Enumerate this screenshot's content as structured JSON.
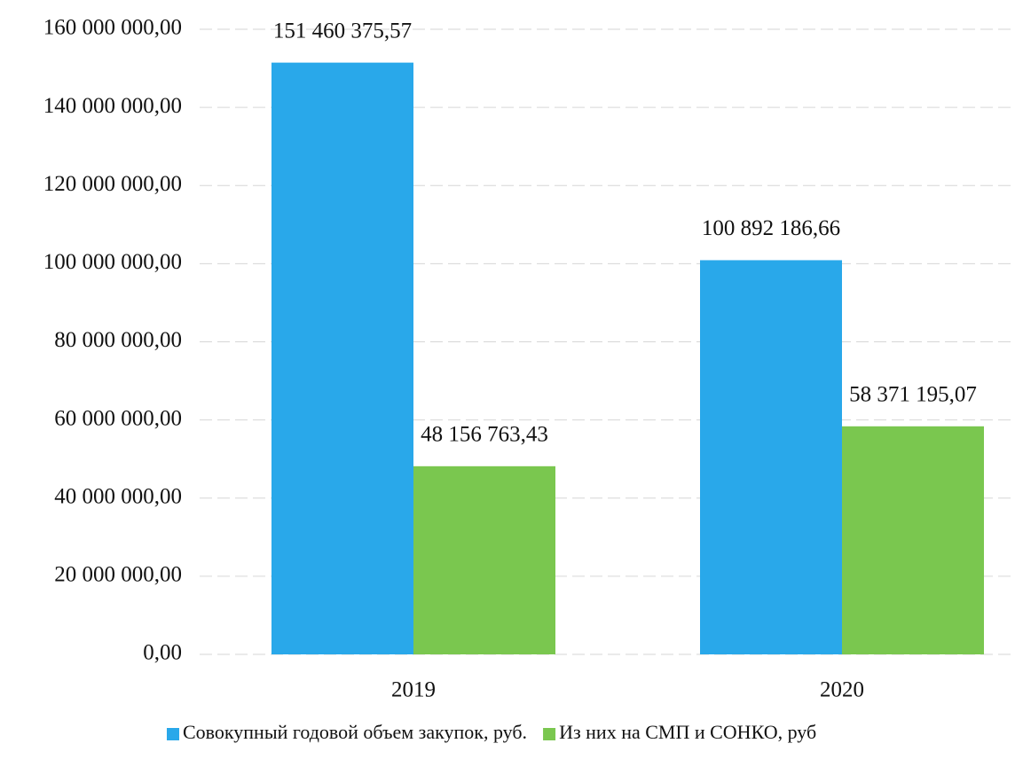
{
  "chart_data": {
    "type": "bar",
    "categories": [
      "2019",
      "2020"
    ],
    "series": [
      {
        "name": "Совокупный годовой объем закупок, руб.",
        "color": "#29a8ea",
        "values": [
          151460375.57,
          100892186.66
        ],
        "value_labels": [
          "151 460 375,57",
          "100 892 186,66"
        ]
      },
      {
        "name": "Из них на СМП и СОНКО, руб",
        "color": "#7ac74f",
        "values": [
          48156763.43,
          58371195.07
        ],
        "value_labels": [
          "48 156 763,43",
          "58 371 195,07"
        ]
      }
    ],
    "ylim": [
      0,
      160000000
    ],
    "yticks": [
      {
        "value": 0,
        "label": "0,00"
      },
      {
        "value": 20000000,
        "label": "20 000 000,00"
      },
      {
        "value": 40000000,
        "label": "40 000 000,00"
      },
      {
        "value": 60000000,
        "label": "60 000 000,00"
      },
      {
        "value": 80000000,
        "label": "80 000 000,00"
      },
      {
        "value": 100000000,
        "label": "100 000 000,00"
      },
      {
        "value": 120000000,
        "label": "120 000 000,00"
      },
      {
        "value": 140000000,
        "label": "140 000 000,00"
      },
      {
        "value": 160000000,
        "label": "160 000 000,00"
      }
    ],
    "grid": true,
    "legend": "bottom"
  }
}
